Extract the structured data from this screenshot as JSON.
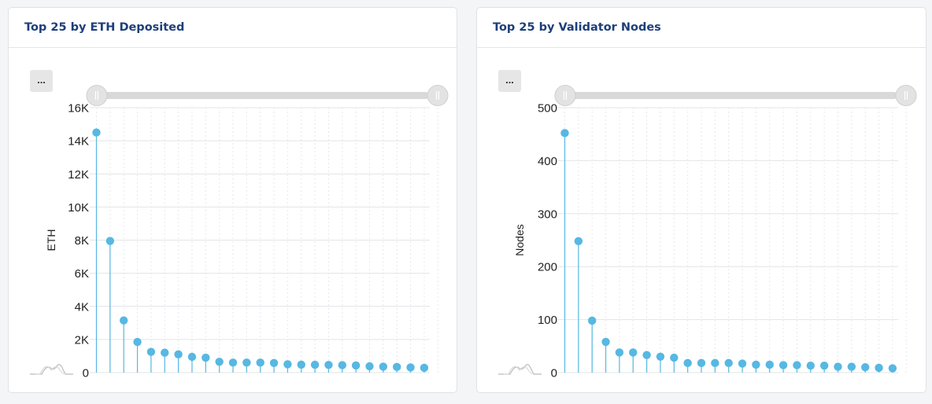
{
  "colors": {
    "accent": "#56b8e3",
    "title": "#1d3f7a"
  },
  "charts": [
    {
      "card_title": "Top 25 by ETH Deposited",
      "menu_label": "...",
      "chart_data": {
        "type": "scatter",
        "title": "Top 25 by ETH Deposited",
        "ylabel": "ETH",
        "xlabel": "",
        "ylim": [
          0,
          16000
        ],
        "yticks": [
          0,
          2000,
          4000,
          6000,
          8000,
          10000,
          12000,
          14000,
          16000
        ],
        "ytick_labels": [
          "0",
          "2K",
          "4K",
          "6K",
          "8K",
          "10K",
          "12K",
          "14K",
          "16K"
        ],
        "x": [
          1,
          2,
          3,
          4,
          5,
          6,
          7,
          8,
          9,
          10,
          11,
          12,
          13,
          14,
          15,
          16,
          17,
          18,
          19,
          20,
          21,
          22,
          23,
          24,
          25
        ],
        "values": [
          14500,
          7950,
          3150,
          1850,
          1250,
          1200,
          1100,
          950,
          900,
          650,
          600,
          600,
          600,
          580,
          500,
          480,
          470,
          460,
          450,
          430,
          380,
          360,
          340,
          310,
          290
        ],
        "grid": true
      }
    },
    {
      "card_title": "Top 25 by Validator Nodes",
      "menu_label": "...",
      "chart_data": {
        "type": "scatter",
        "title": "Top 25 by Validator Nodes",
        "ylabel": "Nodes",
        "xlabel": "",
        "ylim": [
          0,
          500
        ],
        "yticks": [
          0,
          100,
          200,
          300,
          400,
          500
        ],
        "ytick_labels": [
          "0",
          "100",
          "200",
          "300",
          "400",
          "500"
        ],
        "x": [
          1,
          2,
          3,
          4,
          5,
          6,
          7,
          8,
          9,
          10,
          11,
          12,
          13,
          14,
          15,
          16,
          17,
          18,
          19,
          20,
          21,
          22,
          23,
          24,
          25
        ],
        "values": [
          452,
          248,
          98,
          58,
          38,
          38,
          33,
          30,
          28,
          18,
          18,
          18,
          18,
          17,
          15,
          15,
          14,
          14,
          13,
          13,
          11,
          11,
          10,
          9,
          8
        ],
        "grid": true
      }
    }
  ]
}
